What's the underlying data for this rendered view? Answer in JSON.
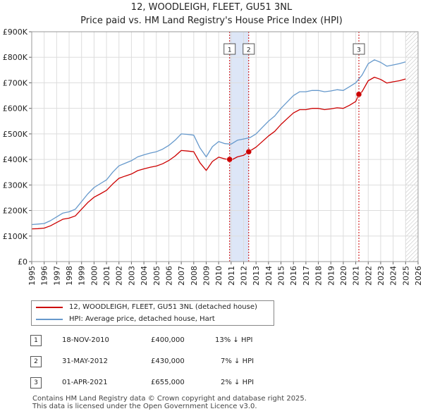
{
  "title_line1": "12, WOODLEIGH, FLEET, GU51 3NL",
  "title_line2": "Price paid vs. HM Land Registry's House Price Index (HPI)",
  "colors": {
    "property": "#cc0000",
    "hpi": "#6699cc",
    "band": "#dde6f7",
    "grid": "#dddddd"
  },
  "legend": [
    {
      "label": "12, WOODLEIGH, FLEET, GU51 3NL (detached house)",
      "color": "#cc0000"
    },
    {
      "label": "HPI: Average price, detached house, Hart",
      "color": "#6699cc"
    }
  ],
  "transactions": [
    {
      "num": "1",
      "date": "18-NOV-2010",
      "price": "£400,000",
      "hpi": "13% ↓ HPI"
    },
    {
      "num": "2",
      "date": "31-MAY-2012",
      "price": "£430,000",
      "hpi": "7% ↓ HPI"
    },
    {
      "num": "3",
      "date": "01-APR-2021",
      "price": "£655,000",
      "hpi": "2% ↓ HPI"
    }
  ],
  "footer_line1": "Contains HM Land Registry data © Crown copyright and database right 2025.",
  "footer_line2": "This data is licensed under the Open Government Licence v3.0.",
  "chart_data": {
    "type": "line",
    "title": "12, WOODLEIGH, FLEET, GU51 3NL",
    "subtitle": "Price paid vs. HM Land Registry's House Price Index (HPI)",
    "xlabel": "",
    "ylabel": "",
    "xlim": [
      1995,
      2026
    ],
    "ylim": [
      0,
      900000
    ],
    "y_ticks": [
      0,
      100000,
      200000,
      300000,
      400000,
      500000,
      600000,
      700000,
      800000,
      900000
    ],
    "y_tick_labels": [
      "£0",
      "£100K",
      "£200K",
      "£300K",
      "£400K",
      "£500K",
      "£600K",
      "£700K",
      "£800K",
      "£900K"
    ],
    "x_ticks": [
      1995,
      1996,
      1997,
      1998,
      1999,
      2000,
      2001,
      2002,
      2003,
      2004,
      2005,
      2006,
      2007,
      2008,
      2009,
      2010,
      2011,
      2012,
      2013,
      2014,
      2015,
      2016,
      2017,
      2018,
      2019,
      2020,
      2021,
      2022,
      2023,
      2024,
      2025,
      2026
    ],
    "x_tick_labels": [
      "1995",
      "1996",
      "1997",
      "1998",
      "1999",
      "2000",
      "2001",
      "2002",
      "2003",
      "2004",
      "2005",
      "2006",
      "2007",
      "2008",
      "2009",
      "2010",
      "2011",
      "2012",
      "2013",
      "2014",
      "2015",
      "2016",
      "2017",
      "2018",
      "2019",
      "2020",
      "2021",
      "2022",
      "2023",
      "2024",
      "2025",
      "2026"
    ],
    "grid": true,
    "shaded_periods": [
      [
        2010.88,
        2012.41
      ]
    ],
    "future_hatch_from": 2025.0,
    "sale_markers": [
      {
        "label": "1",
        "x": 2010.88,
        "y": 400000
      },
      {
        "label": "2",
        "x": 2012.41,
        "y": 430000
      },
      {
        "label": "3",
        "x": 2021.25,
        "y": 655000
      }
    ],
    "series": [
      {
        "name": "HPI: Average price, detached house, Hart",
        "x": [
          1995.0,
          1995.5,
          1996.0,
          1996.5,
          1997.0,
          1997.5,
          1998.0,
          1998.5,
          1999.0,
          1999.5,
          2000.0,
          2000.5,
          2001.0,
          2001.5,
          2002.0,
          2002.5,
          2003.0,
          2003.5,
          2004.0,
          2004.5,
          2005.0,
          2005.5,
          2006.0,
          2006.5,
          2007.0,
          2007.5,
          2008.0,
          2008.5,
          2009.0,
          2009.5,
          2010.0,
          2010.5,
          2011.0,
          2011.5,
          2012.0,
          2012.5,
          2013.0,
          2013.5,
          2014.0,
          2014.5,
          2015.0,
          2015.5,
          2016.0,
          2016.5,
          2017.0,
          2017.5,
          2018.0,
          2018.5,
          2019.0,
          2019.5,
          2020.0,
          2020.5,
          2021.0,
          2021.5,
          2022.0,
          2022.5,
          2023.0,
          2023.5,
          2024.0,
          2024.5,
          2025.0
        ],
        "values": [
          145000,
          147000,
          149000,
          160000,
          175000,
          190000,
          195000,
          205000,
          235000,
          265000,
          290000,
          305000,
          320000,
          350000,
          375000,
          385000,
          395000,
          410000,
          418000,
          425000,
          430000,
          440000,
          455000,
          475000,
          500000,
          498000,
          495000,
          445000,
          410000,
          450000,
          470000,
          462000,
          460000,
          475000,
          480000,
          485000,
          500000,
          525000,
          550000,
          570000,
          600000,
          625000,
          650000,
          665000,
          665000,
          670000,
          670000,
          665000,
          668000,
          673000,
          670000,
          685000,
          700000,
          730000,
          775000,
          790000,
          780000,
          765000,
          770000,
          775000,
          782000
        ]
      },
      {
        "name": "12, WOODLEIGH, FLEET, GU51 3NL (detached house)",
        "x": [
          1995.0,
          1995.5,
          1996.0,
          1996.5,
          1997.0,
          1997.5,
          1998.0,
          1998.5,
          1999.0,
          1999.5,
          2000.0,
          2000.5,
          2001.0,
          2001.5,
          2002.0,
          2002.5,
          2003.0,
          2003.5,
          2004.0,
          2004.5,
          2005.0,
          2005.5,
          2006.0,
          2006.5,
          2007.0,
          2007.5,
          2008.0,
          2008.5,
          2009.0,
          2009.5,
          2010.0,
          2010.5,
          2010.88,
          2011.0,
          2011.5,
          2012.0,
          2012.41,
          2012.5,
          2013.0,
          2013.5,
          2014.0,
          2014.5,
          2015.0,
          2015.5,
          2016.0,
          2016.5,
          2017.0,
          2017.5,
          2018.0,
          2018.5,
          2019.0,
          2019.5,
          2020.0,
          2020.5,
          2021.0,
          2021.25,
          2021.5,
          2022.0,
          2022.5,
          2023.0,
          2023.5,
          2024.0,
          2024.5,
          2025.0
        ],
        "values": [
          128000,
          129000,
          131000,
          140000,
          153000,
          166000,
          170000,
          179000,
          205000,
          231000,
          252000,
          265000,
          279000,
          304000,
          326000,
          335000,
          343000,
          356000,
          363000,
          369000,
          374000,
          383000,
          396000,
          413000,
          435000,
          433000,
          430000,
          387000,
          357000,
          392000,
          409000,
          402000,
          400000,
          397000,
          410000,
          416000,
          430000,
          433000,
          448000,
          470000,
          492000,
          510000,
          537000,
          560000,
          582000,
          595000,
          595000,
          600000,
          600000,
          595000,
          598000,
          602000,
          600000,
          612000,
          627000,
          655000,
          665000,
          708000,
          722000,
          713000,
          699000,
          704000,
          708000,
          715000
        ]
      }
    ]
  }
}
